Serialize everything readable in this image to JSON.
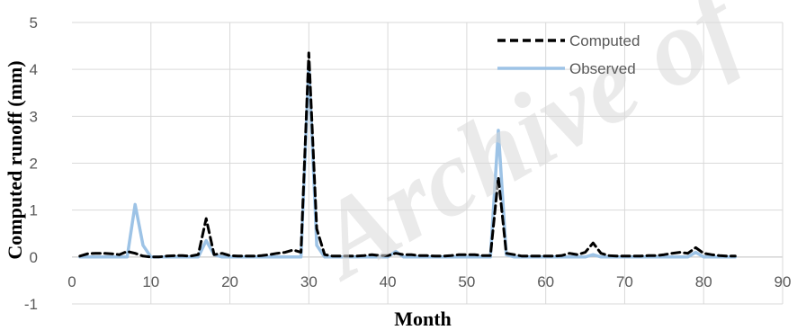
{
  "chart_data": {
    "type": "line",
    "title": "",
    "xlabel": "Month",
    "ylabel": "Computed runoff (mm)",
    "xlim": [
      0,
      90
    ],
    "ylim": [
      -1,
      5
    ],
    "xticks": [
      0,
      10,
      20,
      30,
      40,
      50,
      60,
      70,
      80,
      90
    ],
    "yticks": [
      -1,
      0,
      1,
      2,
      3,
      4,
      5
    ],
    "grid": true,
    "legend_position": "top-right",
    "watermark_text": "Archive of",
    "series": [
      {
        "name": "Computed",
        "color": "#000000",
        "dash": "dashed",
        "x": [
          1,
          2,
          3,
          4,
          5,
          6,
          7,
          8,
          9,
          10,
          11,
          12,
          13,
          14,
          15,
          16,
          17,
          18,
          19,
          20,
          21,
          22,
          23,
          24,
          25,
          26,
          27,
          28,
          29,
          30,
          31,
          32,
          33,
          34,
          35,
          36,
          37,
          38,
          39,
          40,
          41,
          42,
          43,
          44,
          45,
          46,
          47,
          48,
          49,
          50,
          51,
          52,
          53,
          54,
          55,
          56,
          57,
          58,
          59,
          60,
          61,
          62,
          63,
          64,
          65,
          66,
          67,
          68,
          69,
          70,
          71,
          72,
          73,
          74,
          75,
          76,
          77,
          78,
          79,
          80,
          81,
          82,
          83,
          84
        ],
        "y": [
          0.02,
          0.07,
          0.08,
          0.08,
          0.07,
          0.05,
          0.12,
          0.08,
          0.02,
          0.0,
          0.0,
          0.02,
          0.03,
          0.03,
          0.02,
          0.05,
          0.82,
          0.05,
          0.08,
          0.03,
          0.02,
          0.02,
          0.02,
          0.03,
          0.05,
          0.08,
          0.1,
          0.15,
          0.1,
          4.35,
          0.6,
          0.05,
          0.02,
          0.02,
          0.02,
          0.02,
          0.03,
          0.05,
          0.03,
          0.03,
          0.08,
          0.05,
          0.05,
          0.03,
          0.03,
          0.02,
          0.02,
          0.03,
          0.05,
          0.05,
          0.05,
          0.03,
          0.03,
          1.7,
          0.08,
          0.05,
          0.02,
          0.02,
          0.02,
          0.02,
          0.02,
          0.03,
          0.08,
          0.05,
          0.1,
          0.3,
          0.08,
          0.03,
          0.02,
          0.02,
          0.02,
          0.02,
          0.03,
          0.03,
          0.05,
          0.08,
          0.1,
          0.08,
          0.2,
          0.08,
          0.05,
          0.03,
          0.02,
          0.02
        ]
      },
      {
        "name": "Observed",
        "color": "#9dc3e6",
        "dash": "solid",
        "x": [
          1,
          2,
          3,
          4,
          5,
          6,
          7,
          8,
          9,
          10,
          11,
          12,
          13,
          14,
          15,
          16,
          17,
          18,
          19,
          20,
          21,
          22,
          23,
          24,
          25,
          26,
          27,
          28,
          29,
          30,
          31,
          32,
          33,
          34,
          35,
          36,
          37,
          38,
          39,
          40,
          41,
          42,
          43,
          44,
          45,
          46,
          47,
          48,
          49,
          50,
          51,
          52,
          53,
          54,
          55,
          56,
          57,
          58,
          59,
          60,
          61,
          62,
          63,
          64,
          65,
          66,
          67,
          68,
          69,
          70,
          71,
          72,
          73,
          74,
          75,
          76,
          77,
          78,
          79,
          80,
          81,
          82,
          83,
          84
        ],
        "y": [
          0.0,
          0.0,
          0.0,
          0.0,
          0.0,
          0.0,
          0.0,
          1.12,
          0.25,
          0.0,
          0.0,
          0.0,
          0.0,
          0.0,
          0.0,
          0.0,
          0.35,
          0.05,
          0.0,
          0.0,
          0.0,
          0.0,
          0.0,
          0.0,
          0.0,
          0.0,
          0.0,
          0.0,
          0.0,
          4.15,
          0.25,
          0.0,
          0.0,
          0.0,
          0.0,
          0.0,
          0.0,
          0.0,
          0.0,
          0.0,
          0.12,
          0.0,
          0.0,
          0.0,
          0.0,
          0.0,
          0.0,
          0.0,
          0.0,
          0.0,
          0.0,
          0.0,
          0.0,
          2.7,
          0.05,
          0.0,
          0.0,
          0.0,
          0.0,
          0.0,
          0.0,
          0.0,
          0.0,
          0.0,
          0.0,
          0.05,
          0.0,
          0.0,
          0.0,
          0.0,
          0.0,
          0.0,
          0.0,
          0.0,
          0.0,
          0.0,
          0.0,
          0.0,
          0.1,
          0.0,
          0.0,
          0.0,
          0.0,
          0.0
        ]
      }
    ]
  }
}
